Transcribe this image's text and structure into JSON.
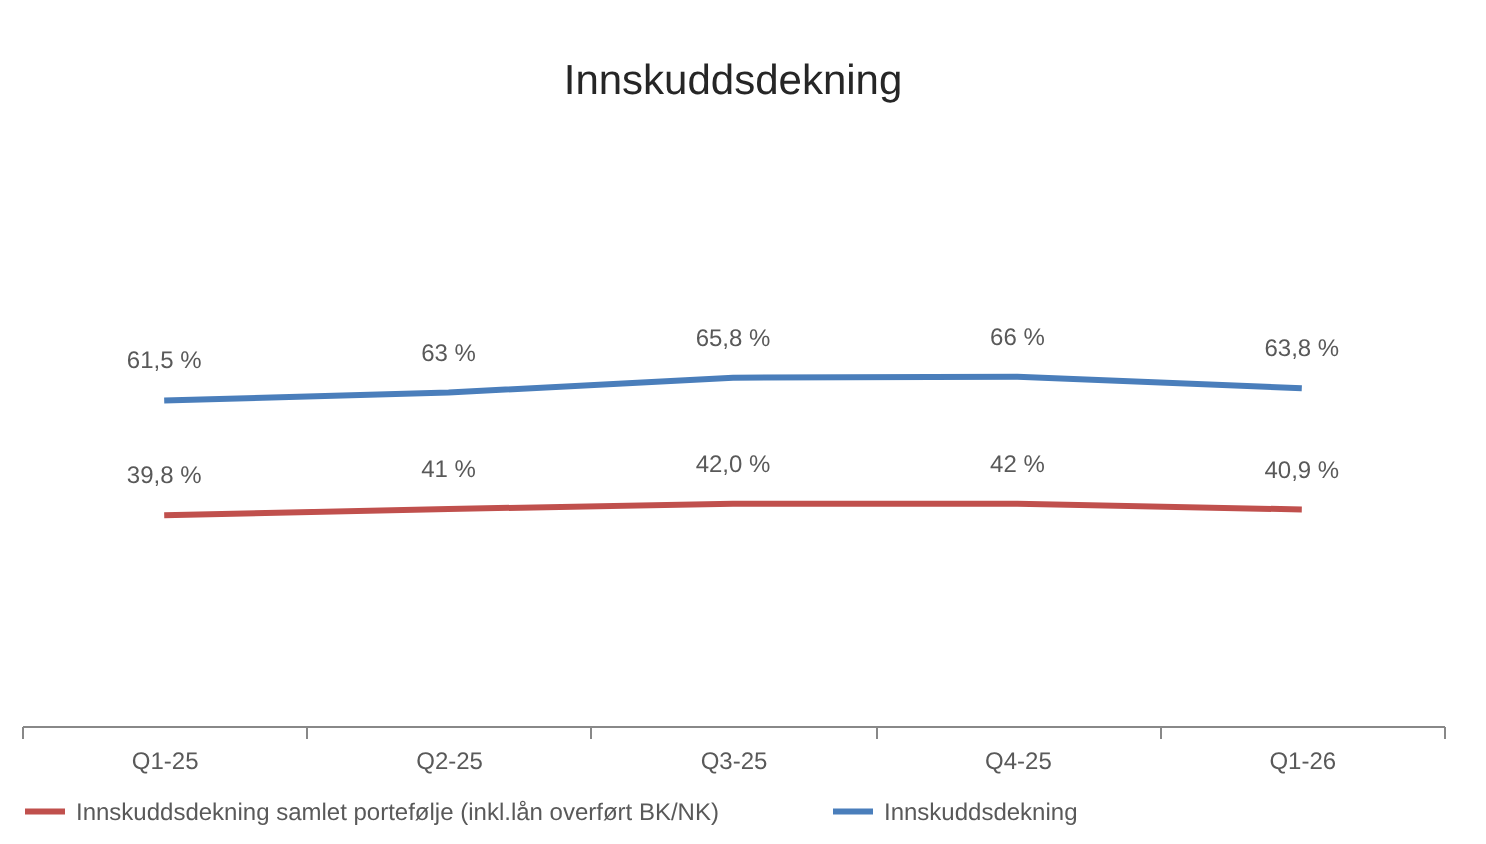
{
  "chart_data": {
    "type": "line",
    "title": "Innskuddsdekning",
    "categories": [
      "Q1-25",
      "Q2-25",
      "Q3-25",
      "Q4-25",
      "Q1-26"
    ],
    "legend": "bottom",
    "grid": false,
    "marker": "none",
    "line_style": "solid",
    "series": [
      {
        "name": "Innskuddsdekning samlet portefølje (inkl.lån overført BK/NK)",
        "color": "#c0504d",
        "values": [
          39.8,
          41,
          42.0,
          42,
          40.9
        ],
        "value_labels": [
          "39,8 %",
          "41 %",
          "42,0 %",
          "42 %",
          "40,9 %"
        ]
      },
      {
        "name": "Innskuddsdekning",
        "color": "#4a7ebb",
        "values": [
          61.5,
          63,
          65.8,
          66,
          63.8
        ],
        "value_labels": [
          "61,5 %",
          "63 %",
          "65,8 %",
          "66 %",
          "63,8 %"
        ]
      }
    ]
  }
}
